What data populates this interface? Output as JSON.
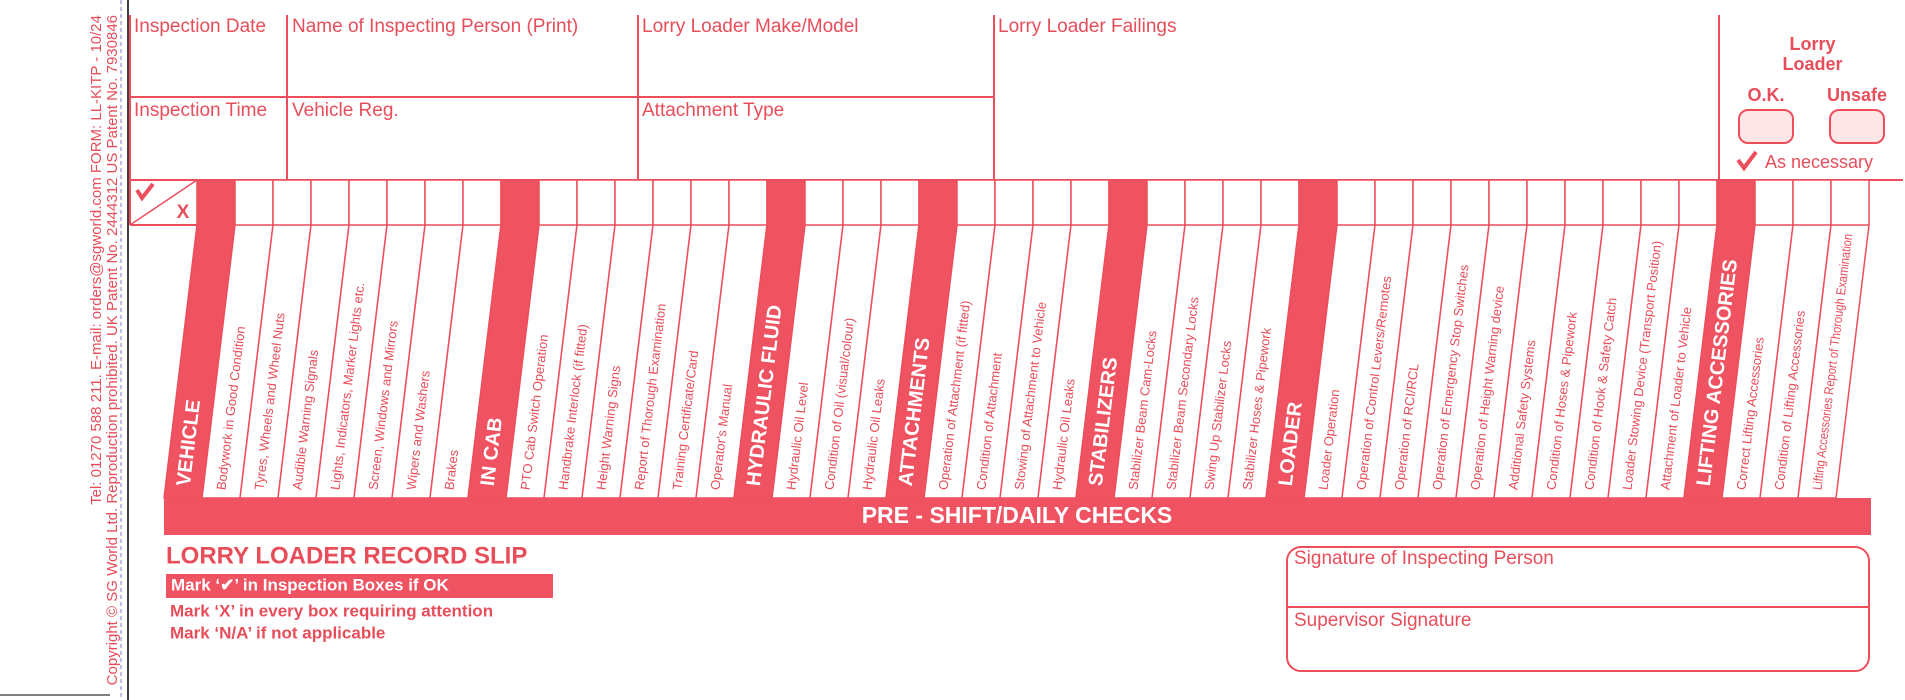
{
  "side_text": [
    "Tel: 01270 588 211.  E-mail: orders@sgworld.com  FORM: LL-KITP - 10/24",
    "Copyright © SG World Ltd. Reproduction prohibited. UK Patent No. 2444312 US Patent No. 7930846"
  ],
  "fields": [
    "Inspection Date",
    "Name of Inspecting Person (Print)",
    "Lorry Loader Make/Model",
    "Lorry Loader Failings",
    "Inspection Time",
    "Vehicle Reg.",
    "Attachment Type"
  ],
  "status": {
    "title": "Lorry Loader",
    "ok": "O.K.",
    "unsafe": "Unsafe",
    "note": "As necessary"
  },
  "corner_mark": "X",
  "checks": {
    "groups": [
      {
        "title": "VEHICLE",
        "items": [
          "Bodywork in Good Condition",
          "Tyres, Wheels and Wheel Nuts",
          "Audible Warning Signals",
          "Lights, Indicators, Marker Lights etc.",
          "Screen, Windows and Mirrors",
          "Wipers and Washers",
          "Brakes"
        ]
      },
      {
        "title": "IN CAB",
        "items": [
          "PTO Cab Switch Operation",
          "Handbrake Interlock (if fitted)",
          "Height Warning Signs",
          "Report of Thorough Examination",
          "Training Certificate/Card",
          "Operator's Manual"
        ]
      },
      {
        "title": "HYDRAULIC FLUID",
        "items": [
          "Hydraulic Oil Level",
          "Condition of Oil (visual/colour)",
          "Hydraulic Oil Leaks"
        ]
      },
      {
        "title": "ATTACHMENTS",
        "items": [
          "Operation of Attachment (if fitted)",
          "Condition of Attachment",
          "Stowing of Attachment to Vehicle",
          "Hydraulic Oil Leaks"
        ]
      },
      {
        "title": "STABILIZERS",
        "items": [
          "Stabilizer Beam Cam-Locks",
          "Stabilizer Beam Secondary Locks",
          "Swing Up Stabilizer Locks",
          "Stabilizer Hoses & Pipework"
        ]
      },
      {
        "title": "LOADER",
        "items": [
          "Loader Operation",
          "Operation of Control Levers/Remotes",
          "Operation of RCI/RCL",
          "Operation of Emergency Stop Switches",
          "Operation of Height Warning device",
          "Additional Safety Systems",
          "Condition of Hoses & Pipework",
          "Condition of Hook & Safety Catch",
          "Loader Stowing Device (Transport Position)",
          "Attachment of Loader to Vehicle"
        ]
      },
      {
        "title": "LIFTING ACCESSORIES",
        "items": [
          "Correct Lifting Accessories",
          "Condition of Lifting Accessories",
          "Lifting Accessories Report of Thorough Examination"
        ]
      }
    ],
    "band": "PRE - SHIFT/DAILY CHECKS"
  },
  "record_slip": {
    "title": "LORRY LOADER RECORD SLIP",
    "instructions": [
      "Mark ‘✔’ in Inspection Boxes if OK",
      "Mark ‘X’ in every box requiring attention",
      "Mark ‘N/A’ if not applicable"
    ]
  },
  "signatures": [
    "Signature of Inspecting Person",
    "Supervisor Signature"
  ]
}
